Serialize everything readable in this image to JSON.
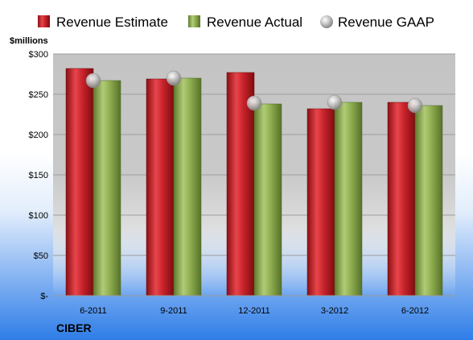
{
  "chart_data": {
    "type": "bar",
    "company": "CIBER",
    "unit_label": "$millions",
    "categories": [
      "6-2011",
      "9-2011",
      "12-2011",
      "3-2012",
      "6-2012"
    ],
    "series": [
      {
        "name": "Revenue Estimate",
        "kind": "bar",
        "values": [
          282,
          269,
          277,
          232,
          240
        ]
      },
      {
        "name": "Revenue Actual",
        "kind": "bar",
        "values": [
          267,
          270,
          238,
          240,
          236
        ]
      },
      {
        "name": "Revenue GAAP",
        "kind": "marker",
        "values": [
          267,
          270,
          239,
          240,
          236
        ]
      }
    ],
    "ylim": [
      0,
      300
    ],
    "yticks": [
      0,
      50,
      100,
      150,
      200,
      250,
      300
    ],
    "ytick_labels": [
      "$-",
      "$50",
      "$100",
      "$150",
      "$200",
      "$250",
      "$300"
    ],
    "grid": true,
    "legend_position": "top"
  },
  "colors": {
    "estimate": "#c8232b",
    "actual": "#8fae4f",
    "gaap": "#b4b4b4"
  }
}
